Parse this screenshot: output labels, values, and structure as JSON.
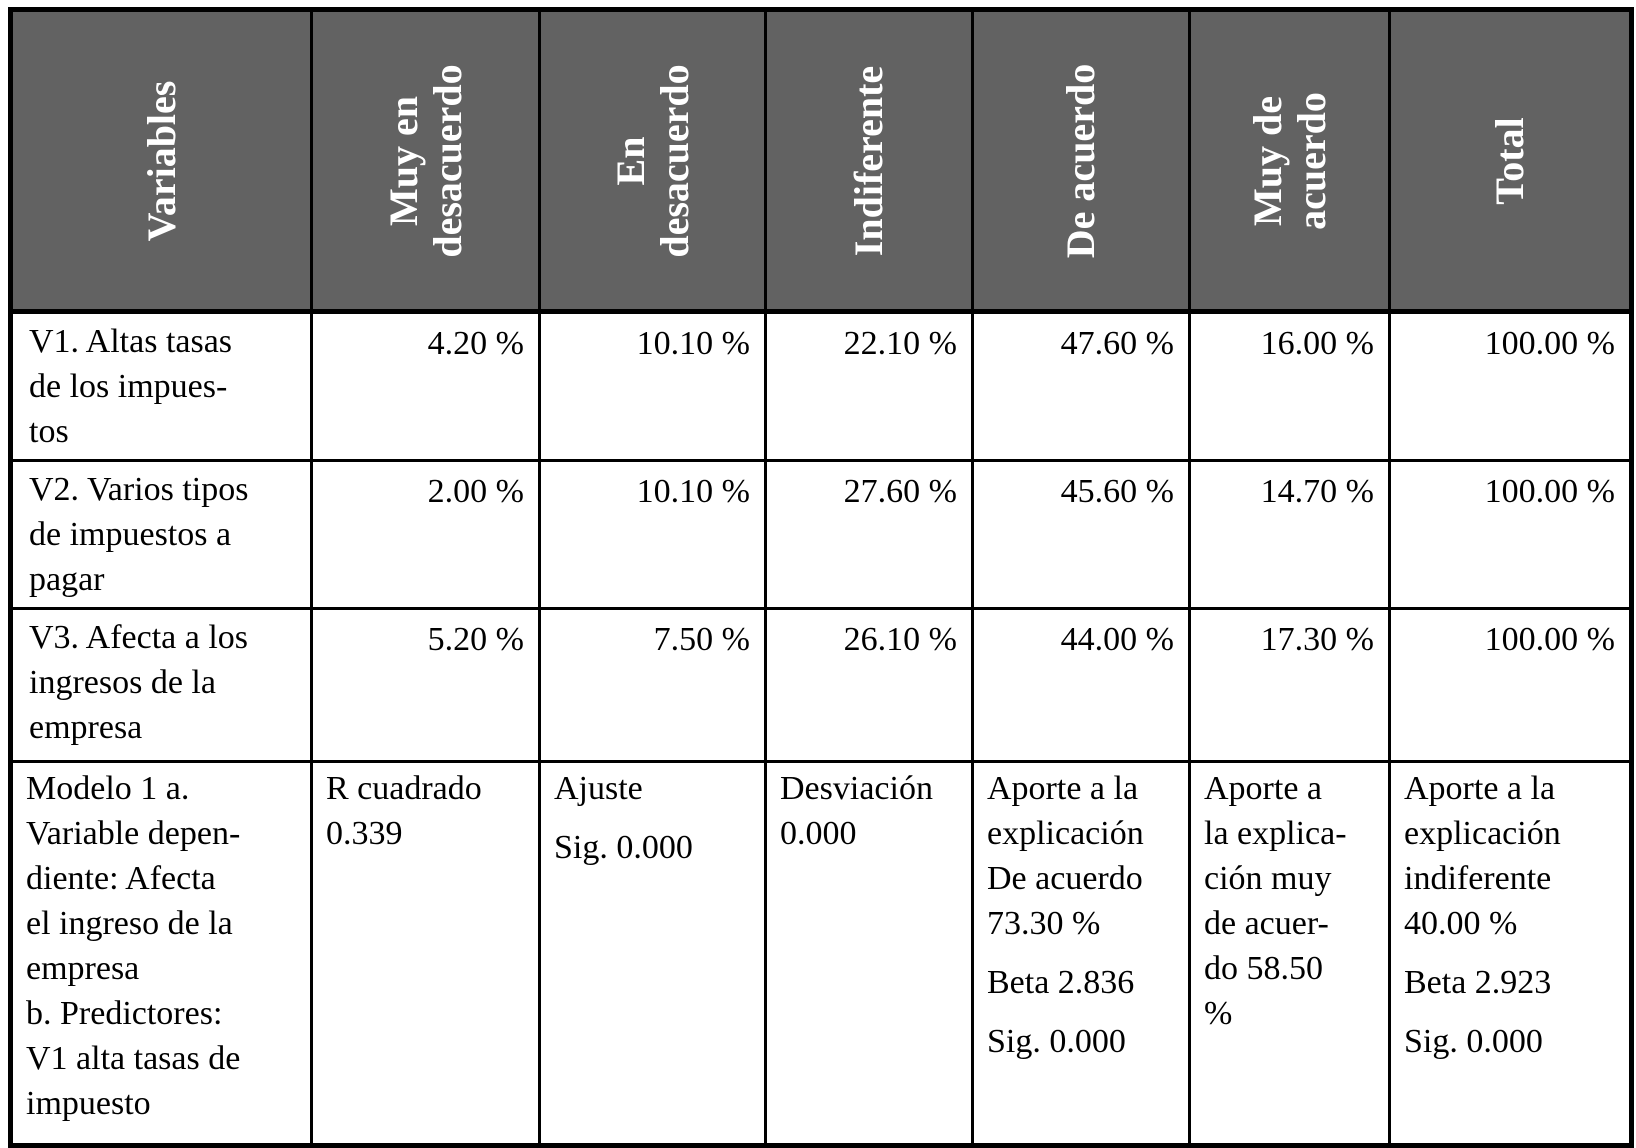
{
  "table": {
    "header": {
      "bg_color": "#626262",
      "text_color": "#ffffff",
      "columns": [
        {
          "label": "Variables"
        },
        {
          "label": "Muy en\ndesacuerdo"
        },
        {
          "label": "En\ndesacuerdo"
        },
        {
          "label": "Indiferente"
        },
        {
          "label": "De acuerdo"
        },
        {
          "label": "Muy de\nacuerdo"
        },
        {
          "label": "Total"
        }
      ]
    },
    "data_rows": [
      {
        "variable": "V1. Altas tasas\nde los impues-\ntos",
        "values": [
          "4.20 %",
          "10.10 %",
          "22.10 %",
          "47.60 %",
          "16.00 %",
          "100.00 %"
        ]
      },
      {
        "variable": "V2. Varios tipos\nde impuestos a\npagar",
        "values": [
          "2.00 %",
          "10.10 %",
          "27.60 %",
          "45.60 %",
          "14.70 %",
          "100.00 %"
        ]
      },
      {
        "variable": "V3. Afecta a los\ningresos de la\nempresa",
        "values": [
          "5.20 %",
          "7.50 %",
          "26.10 %",
          "44.00 %",
          "17.30 %",
          "100.00 %"
        ]
      }
    ],
    "model_row": {
      "cells": [
        {
          "paragraphs": [
            "Modelo 1 a.\nVariable depen-\ndiente: Afecta\nel ingreso de la\nempresa\nb. Predictores:\nV1 alta tasas de\nimpuesto"
          ]
        },
        {
          "paragraphs": [
            "R cuadrado\n0.339"
          ]
        },
        {
          "paragraphs": [
            "Ajuste",
            "Sig. 0.000"
          ]
        },
        {
          "paragraphs": [
            "Desviación\n0.000"
          ]
        },
        {
          "paragraphs": [
            "Aporte a la\nexplicación\nDe acuerdo\n73.30 %",
            "Beta 2.836",
            "Sig. 0.000"
          ]
        },
        {
          "paragraphs": [
            "Aporte a\nla explica-\nción muy\nde acuer-\ndo 58.50\n%"
          ]
        },
        {
          "paragraphs": [
            "Aporte a la\nexplicación\nindiferente\n40.00 %",
            "Beta 2.923",
            "Sig. 0.000"
          ]
        }
      ]
    }
  }
}
